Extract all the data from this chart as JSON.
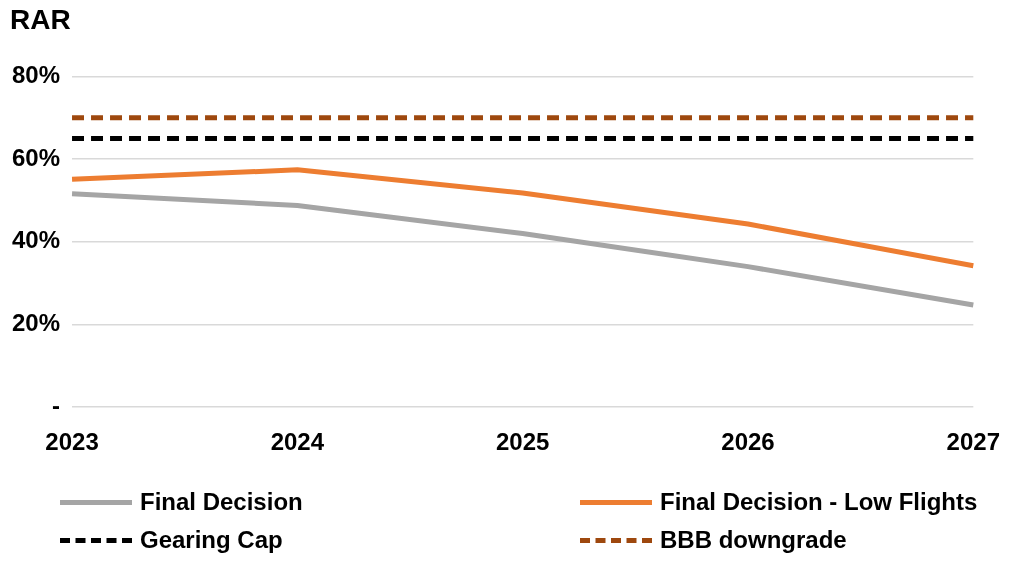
{
  "chart_data": {
    "type": "line",
    "title": "RAR",
    "categories": [
      "2023",
      "2024",
      "2025",
      "2026",
      "2027"
    ],
    "series": [
      {
        "name": "Final Decision",
        "color": "#a5a5a5",
        "values": [
          51.6,
          48.8,
          42,
          34,
          24.7
        ]
      },
      {
        "name": "Final Decision - Low Flights",
        "color": "#ed7d31",
        "values": [
          55.1,
          57.4,
          51.8,
          44.3,
          34.2
        ]
      },
      {
        "name": "Gearing Cap",
        "color": "#000000",
        "values": [
          65,
          65,
          65,
          65,
          65
        ],
        "line_style": "dashed"
      },
      {
        "name": "BBB downgrade",
        "color": "#9e480e",
        "values": [
          70,
          70,
          70,
          70,
          70
        ],
        "line_style": "dashed"
      }
    ],
    "ylim": [
      0,
      80
    ],
    "yticks": [
      {
        "value": 0,
        "label": "-"
      },
      {
        "value": 20,
        "label": "20%"
      },
      {
        "value": 40,
        "label": "40%"
      },
      {
        "value": 60,
        "label": "60%"
      },
      {
        "value": 80,
        "label": "80%"
      }
    ],
    "grid": "y",
    "legend": "bottom",
    "marker": "none"
  }
}
